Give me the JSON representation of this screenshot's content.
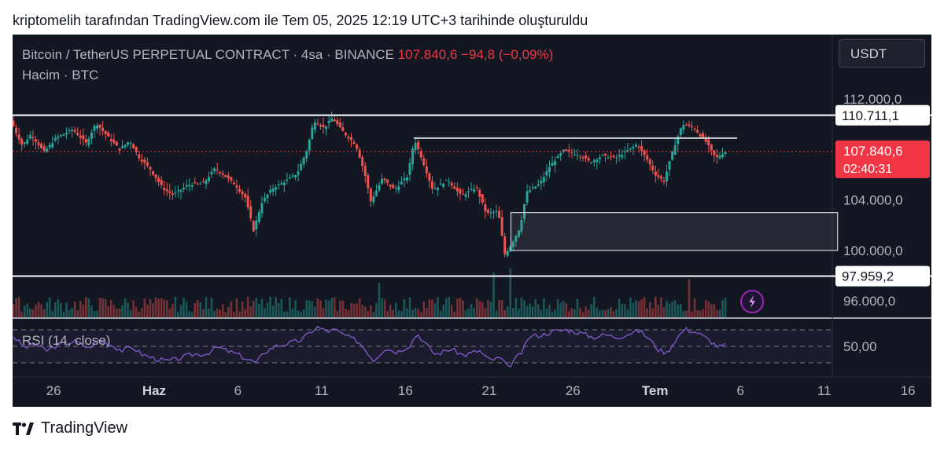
{
  "caption": "kriptomelih tarafından TradingView.com ile Tem 05, 2025 12:19 UTC+3 tarihinde oluşturuldu",
  "legend": {
    "pair": "Bitcoin / TetherUS PERPETUAL CONTRACT · 4sa · BINANCE",
    "last": "107.840,6",
    "change": "−94,8 (−0,09%)",
    "volume_label": "Hacim · BTC"
  },
  "currency": "USDT",
  "rsi_label": "RSI (14, close)",
  "brand": "TradingView",
  "colors": {
    "background": "#131722",
    "up": "#26a69a",
    "down": "#ef5350",
    "rsi": "#7e57c2",
    "level_line": "#d1d4dc",
    "last_price_label": "#f23645"
  },
  "icons": [
    "tradingview-logo-icon",
    "lightning-icon"
  ],
  "chart_data": {
    "type": "candlestick",
    "title": "Bitcoin / TetherUS PERPETUAL CONTRACT · 4sa · BINANCE",
    "ylim": [
      94700,
      113500
    ],
    "y_ticks": [
      {
        "value": 112000,
        "label": "112.000,0"
      },
      {
        "value": 104000,
        "label": "104.000,0"
      },
      {
        "value": 100000,
        "label": "100.000,0"
      },
      {
        "value": 96000,
        "label": "96.000,0"
      }
    ],
    "x_ticks": [
      {
        "day": 26,
        "label": "26"
      },
      {
        "day": 32,
        "label": "Haz"
      },
      {
        "day": 37,
        "label": "6"
      },
      {
        "day": 42,
        "label": "11"
      },
      {
        "day": 47,
        "label": "16"
      },
      {
        "day": 52,
        "label": "21"
      },
      {
        "day": 57,
        "label": "26"
      },
      {
        "day": 61.9,
        "label": "Tem"
      },
      {
        "day": 67,
        "label": "6"
      },
      {
        "day": 72,
        "label": "11"
      },
      {
        "day": 77,
        "label": "16"
      }
    ],
    "x_range": [
      23.55,
      78.4
    ],
    "last_price": {
      "value": 107840.6,
      "label": "107.840,6",
      "countdown": "02:40:31"
    },
    "horizontal_levels": [
      {
        "value": 110711.1,
        "label": "110.711,1"
      },
      {
        "value": 97959.2,
        "label": "97.959,2"
      }
    ],
    "resistance_segment": {
      "price": 108900,
      "from_day": 47.5,
      "to_day": 66.8
    },
    "rectangle_zone": {
      "top": 103000,
      "bottom": 100000,
      "from_day": 53.3,
      "to_day": 72.8
    },
    "close_path": [
      [
        23.6,
        110300
      ],
      [
        24.3,
        108300
      ],
      [
        24.8,
        109200
      ],
      [
        25.6,
        107800
      ],
      [
        26.3,
        108900
      ],
      [
        27.3,
        109600
      ],
      [
        28.1,
        108500
      ],
      [
        28.7,
        110100
      ],
      [
        29.4,
        109000
      ],
      [
        30.1,
        108000
      ],
      [
        30.7,
        108700
      ],
      [
        31.3,
        107300
      ],
      [
        31.9,
        106500
      ],
      [
        32.7,
        104900
      ],
      [
        33.3,
        104400
      ],
      [
        34.2,
        105200
      ],
      [
        35.1,
        105300
      ],
      [
        35.8,
        106500
      ],
      [
        36.3,
        106000
      ],
      [
        37.0,
        105200
      ],
      [
        37.6,
        104200
      ],
      [
        38.1,
        101600
      ],
      [
        38.6,
        103800
      ],
      [
        39.2,
        104900
      ],
      [
        39.9,
        105400
      ],
      [
        40.7,
        106100
      ],
      [
        41.3,
        108000
      ],
      [
        41.7,
        110300
      ],
      [
        42.3,
        109700
      ],
      [
        42.8,
        110500
      ],
      [
        43.5,
        109300
      ],
      [
        44.2,
        108400
      ],
      [
        44.7,
        106300
      ],
      [
        45.1,
        103900
      ],
      [
        45.8,
        105700
      ],
      [
        46.5,
        104800
      ],
      [
        47.3,
        105900
      ],
      [
        47.7,
        108800
      ],
      [
        48.2,
        107100
      ],
      [
        48.8,
        104800
      ],
      [
        49.7,
        105600
      ],
      [
        50.5,
        104300
      ],
      [
        51.4,
        105000
      ],
      [
        52.0,
        102900
      ],
      [
        52.7,
        103100
      ],
      [
        53.1,
        99700
      ],
      [
        53.5,
        100500
      ],
      [
        54.0,
        101800
      ],
      [
        54.4,
        104600
      ],
      [
        55.2,
        105300
      ],
      [
        55.8,
        106700
      ],
      [
        56.6,
        107900
      ],
      [
        57.5,
        107600
      ],
      [
        58.2,
        107000
      ],
      [
        58.9,
        107500
      ],
      [
        59.7,
        107300
      ],
      [
        60.4,
        107900
      ],
      [
        61.0,
        108400
      ],
      [
        61.6,
        107200
      ],
      [
        62.1,
        106000
      ],
      [
        62.6,
        105500
      ],
      [
        63.2,
        108200
      ],
      [
        63.7,
        110000
      ],
      [
        64.4,
        109700
      ],
      [
        65.1,
        108600
      ],
      [
        65.7,
        107300
      ],
      [
        66.2,
        107800
      ]
    ],
    "volume_spikes": [
      {
        "day": 52.3,
        "scale": 2.6
      },
      {
        "day": 53.3,
        "scale": 3.4
      },
      {
        "day": 45.4,
        "scale": 2.0
      },
      {
        "day": 63.9,
        "scale": 2.2
      }
    ],
    "rsi": {
      "levels": [
        70,
        50,
        30
      ],
      "tick_label": "50,00",
      "points": [
        [
          23.6,
          62
        ],
        [
          24.3,
          48
        ],
        [
          24.8,
          53
        ],
        [
          25.6,
          45
        ],
        [
          26.3,
          52
        ],
        [
          27.3,
          56
        ],
        [
          28.1,
          48
        ],
        [
          28.7,
          58
        ],
        [
          29.4,
          52
        ],
        [
          30.1,
          45
        ],
        [
          30.7,
          49
        ],
        [
          31.3,
          40
        ],
        [
          31.9,
          36
        ],
        [
          32.7,
          32
        ],
        [
          33.3,
          34
        ],
        [
          34.2,
          40
        ],
        [
          35.1,
          41
        ],
        [
          35.8,
          49
        ],
        [
          36.3,
          45
        ],
        [
          37.0,
          40
        ],
        [
          37.6,
          34
        ],
        [
          38.1,
          30
        ],
        [
          38.6,
          43
        ],
        [
          39.2,
          50
        ],
        [
          39.9,
          53
        ],
        [
          40.7,
          57
        ],
        [
          41.3,
          66
        ],
        [
          41.7,
          74
        ],
        [
          42.3,
          68
        ],
        [
          42.8,
          70
        ],
        [
          43.5,
          62
        ],
        [
          44.2,
          56
        ],
        [
          44.7,
          44
        ],
        [
          45.1,
          33
        ],
        [
          45.8,
          48
        ],
        [
          46.5,
          43
        ],
        [
          47.3,
          52
        ],
        [
          47.7,
          66
        ],
        [
          48.2,
          53
        ],
        [
          48.8,
          40
        ],
        [
          49.7,
          47
        ],
        [
          50.5,
          39
        ],
        [
          51.4,
          45
        ],
        [
          52.0,
          33
        ],
        [
          52.7,
          36
        ],
        [
          53.1,
          24
        ],
        [
          53.5,
          33
        ],
        [
          54.0,
          44
        ],
        [
          54.4,
          62
        ],
        [
          55.2,
          64
        ],
        [
          55.8,
          68
        ],
        [
          56.6,
          70
        ],
        [
          57.5,
          66
        ],
        [
          58.2,
          61
        ],
        [
          58.9,
          64
        ],
        [
          59.7,
          61
        ],
        [
          60.4,
          66
        ],
        [
          61.0,
          69
        ],
        [
          61.6,
          58
        ],
        [
          62.1,
          46
        ],
        [
          62.6,
          42
        ],
        [
          63.2,
          60
        ],
        [
          63.7,
          71
        ],
        [
          64.4,
          67
        ],
        [
          65.1,
          58
        ],
        [
          65.7,
          49
        ],
        [
          66.2,
          52
        ]
      ]
    }
  }
}
